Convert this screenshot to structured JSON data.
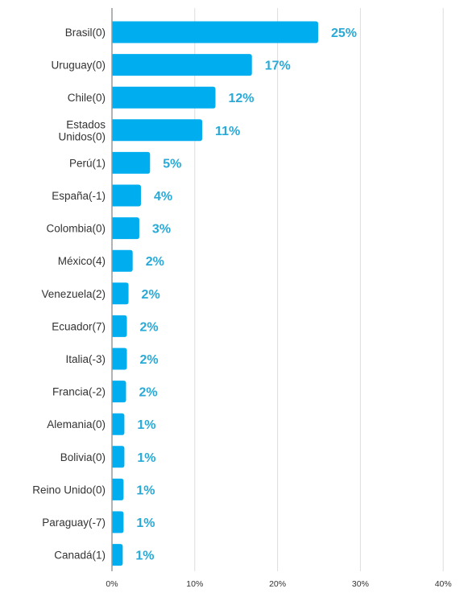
{
  "colors": {
    "bar": "#00AEEF",
    "value_label": "#29A9D6",
    "grid": "#DDDDDD",
    "axis": "#999999"
  },
  "chart_data": {
    "type": "bar",
    "orientation": "horizontal",
    "categories": [
      "Brasil(0)",
      "Uruguay(0)",
      "Chile(0)",
      "Estados Unidos(0)",
      "Perú(1)",
      "España(-1)",
      "Colombia(0)",
      "México(4)",
      "Venezuela(2)",
      "Ecuador(7)",
      "Italia(-3)",
      "Francia(-2)",
      "Alemania(0)",
      "Bolivia(0)",
      "Reino Unido(0)",
      "Paraguay(-7)",
      "Canadá(1)"
    ],
    "category_lines": [
      [
        "Brasil(0)"
      ],
      [
        "Uruguay(0)"
      ],
      [
        "Chile(0)"
      ],
      [
        "Estados",
        "Unidos(0)"
      ],
      [
        "Perú(1)"
      ],
      [
        "España(-1)"
      ],
      [
        "Colombia(0)"
      ],
      [
        "México(4)"
      ],
      [
        "Venezuela(2)"
      ],
      [
        "Ecuador(7)"
      ],
      [
        "Italia(-3)"
      ],
      [
        "Francia(-2)"
      ],
      [
        "Alemania(0)"
      ],
      [
        "Bolivia(0)"
      ],
      [
        "Reino Unido(0)"
      ],
      [
        "Paraguay(-7)"
      ],
      [
        "Canadá(1)"
      ]
    ],
    "values": [
      24.9,
      16.9,
      12.5,
      10.9,
      4.6,
      3.5,
      3.3,
      2.5,
      2.0,
      1.8,
      1.8,
      1.7,
      1.5,
      1.5,
      1.4,
      1.4,
      1.3
    ],
    "value_labels": [
      "25%",
      "17%",
      "12%",
      "11%",
      "5%",
      "4%",
      "3%",
      "2%",
      "2%",
      "2%",
      "2%",
      "2%",
      "1%",
      "1%",
      "1%",
      "1%",
      "1%"
    ],
    "x_ticks": [
      0,
      10,
      20,
      30,
      40
    ],
    "x_tick_labels": [
      "0%",
      "10%",
      "20%",
      "30%",
      "40%"
    ],
    "xlim": [
      0,
      40
    ],
    "grid": true,
    "legend": "none"
  }
}
